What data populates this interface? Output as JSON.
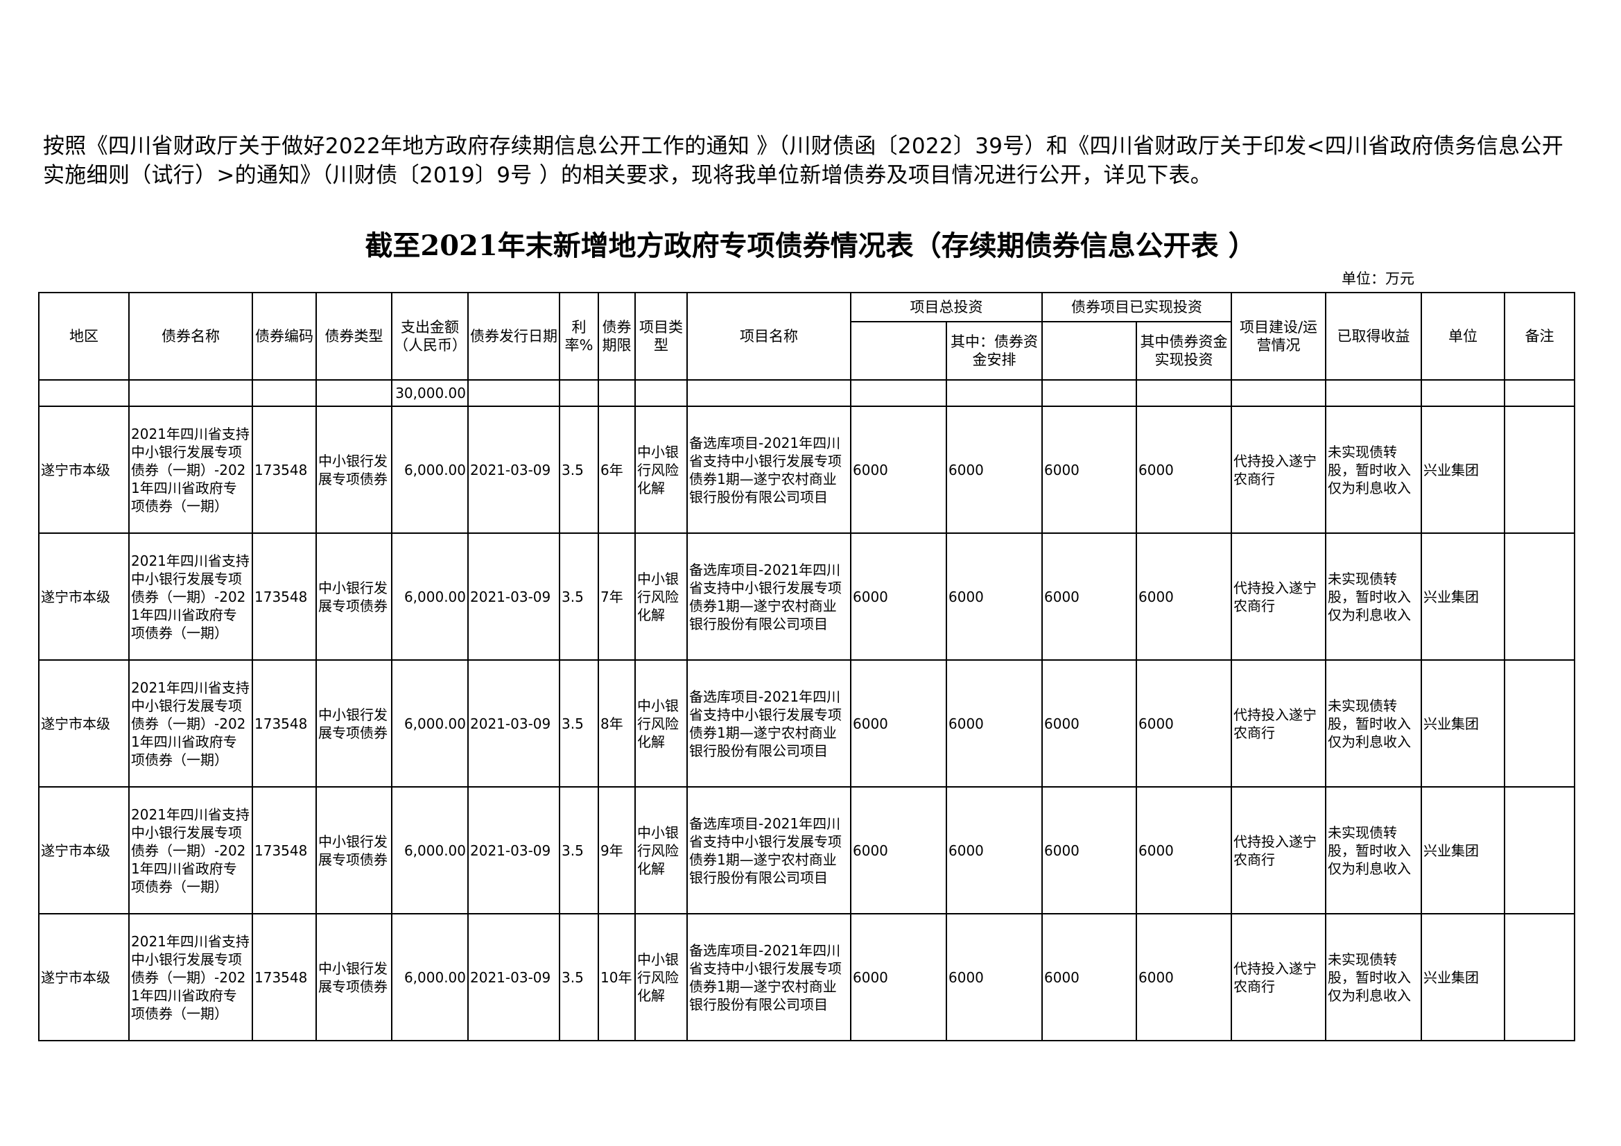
{
  "intro": "按照《四川省财政厅关于做好2022年地方政府存续期信息公开工作的通知 》（川财债函〔2022〕39号）和《四川省财政厅关于印发<四川省政府债务信息公开实施细则（试行）>的通知》（川财债〔2019〕9号 ）的相关要求，现将我单位新增债券及项目情况进行公开，详见下表。",
  "title": "截至2021年末新增地方政府专项债券情况表（存续期债券信息公开表 ）",
  "unit": "单位：万元",
  "headers": {
    "region": "地区",
    "bond_name": "债券名称",
    "bond_code": "债券编码",
    "bond_type": "债券类型",
    "amount": "支出金额（人民币）",
    "issue_date": "债券发行日期",
    "rate": "利率%",
    "term": "债券期限",
    "project_type": "项目类型",
    "project_name": "项目名称",
    "total_invest": "项目总投资",
    "total_invest_bond": "其中：债券资金安排",
    "realized": "债券项目已实现投资",
    "realized_bond": "其中债券资金实现投资",
    "status": "项目建设/运营情况",
    "income": "已取得收益",
    "unit": "单位",
    "remark": "备注"
  },
  "total_amount": "30,000.00",
  "rows": [
    {
      "region": "遂宁市本级",
      "bond_name": "2021年四川省支持中小银行发展专项债券（一期）-2021年四川省政府专项债券（一期）",
      "code": "173548",
      "type": "中小银行发展专项债券",
      "amount": "6,000.00",
      "date": "2021-03-09",
      "rate": "3.5",
      "term": "6年",
      "ptype": "中小银行风险化解",
      "pname": "备选库项目-2021年四川省支持中小银行发展专项债券1期—遂宁农村商业银行股份有限公司项目",
      "ti": "6000",
      "tib": "6000",
      "ri": "6000",
      "rib": "6000",
      "status": "代持投入遂宁农商行",
      "income": "未实现债转股，暂时收入仅为利息收入",
      "unit": "兴业集团",
      "remark": ""
    },
    {
      "region": "遂宁市本级",
      "bond_name": "2021年四川省支持中小银行发展专项债券（一期）-2021年四川省政府专项债券（一期）",
      "code": "173548",
      "type": "中小银行发展专项债券",
      "amount": "6,000.00",
      "date": "2021-03-09",
      "rate": "3.5",
      "term": "7年",
      "ptype": "中小银行风险化解",
      "pname": "备选库项目-2021年四川省支持中小银行发展专项债券1期—遂宁农村商业银行股份有限公司项目",
      "ti": "6000",
      "tib": "6000",
      "ri": "6000",
      "rib": "6000",
      "status": "代持投入遂宁农商行",
      "income": "未实现债转股，暂时收入仅为利息收入",
      "unit": "兴业集团",
      "remark": ""
    },
    {
      "region": "遂宁市本级",
      "bond_name": "2021年四川省支持中小银行发展专项债券（一期）-2021年四川省政府专项债券（一期）",
      "code": "173548",
      "type": "中小银行发展专项债券",
      "amount": "6,000.00",
      "date": "2021-03-09",
      "rate": "3.5",
      "term": "8年",
      "ptype": "中小银行风险化解",
      "pname": "备选库项目-2021年四川省支持中小银行发展专项债券1期—遂宁农村商业银行股份有限公司项目",
      "ti": "6000",
      "tib": "6000",
      "ri": "6000",
      "rib": "6000",
      "status": "代持投入遂宁农商行",
      "income": "未实现债转股，暂时收入仅为利息收入",
      "unit": "兴业集团",
      "remark": ""
    },
    {
      "region": "遂宁市本级",
      "bond_name": "2021年四川省支持中小银行发展专项债券（一期）-2021年四川省政府专项债券（一期）",
      "code": "173548",
      "type": "中小银行发展专项债券",
      "amount": "6,000.00",
      "date": "2021-03-09",
      "rate": "3.5",
      "term": "9年",
      "ptype": "中小银行风险化解",
      "pname": "备选库项目-2021年四川省支持中小银行发展专项债券1期—遂宁农村商业银行股份有限公司项目",
      "ti": "6000",
      "tib": "6000",
      "ri": "6000",
      "rib": "6000",
      "status": "代持投入遂宁农商行",
      "income": "未实现债转股，暂时收入仅为利息收入",
      "unit": "兴业集团",
      "remark": ""
    },
    {
      "region": "遂宁市本级",
      "bond_name": "2021年四川省支持中小银行发展专项债券（一期）-2021年四川省政府专项债券（一期）",
      "code": "173548",
      "type": "中小银行发展专项债券",
      "amount": "6,000.00",
      "date": "2021-03-09",
      "rate": "3.5",
      "term": "10年",
      "ptype": "中小银行风险化解",
      "pname": "备选库项目-2021年四川省支持中小银行发展专项债券1期—遂宁农村商业银行股份有限公司项目",
      "ti": "6000",
      "tib": "6000",
      "ri": "6000",
      "rib": "6000",
      "status": "代持投入遂宁农商行",
      "income": "未实现债转股，暂时收入仅为利息收入",
      "unit": "兴业集团",
      "remark": ""
    }
  ]
}
